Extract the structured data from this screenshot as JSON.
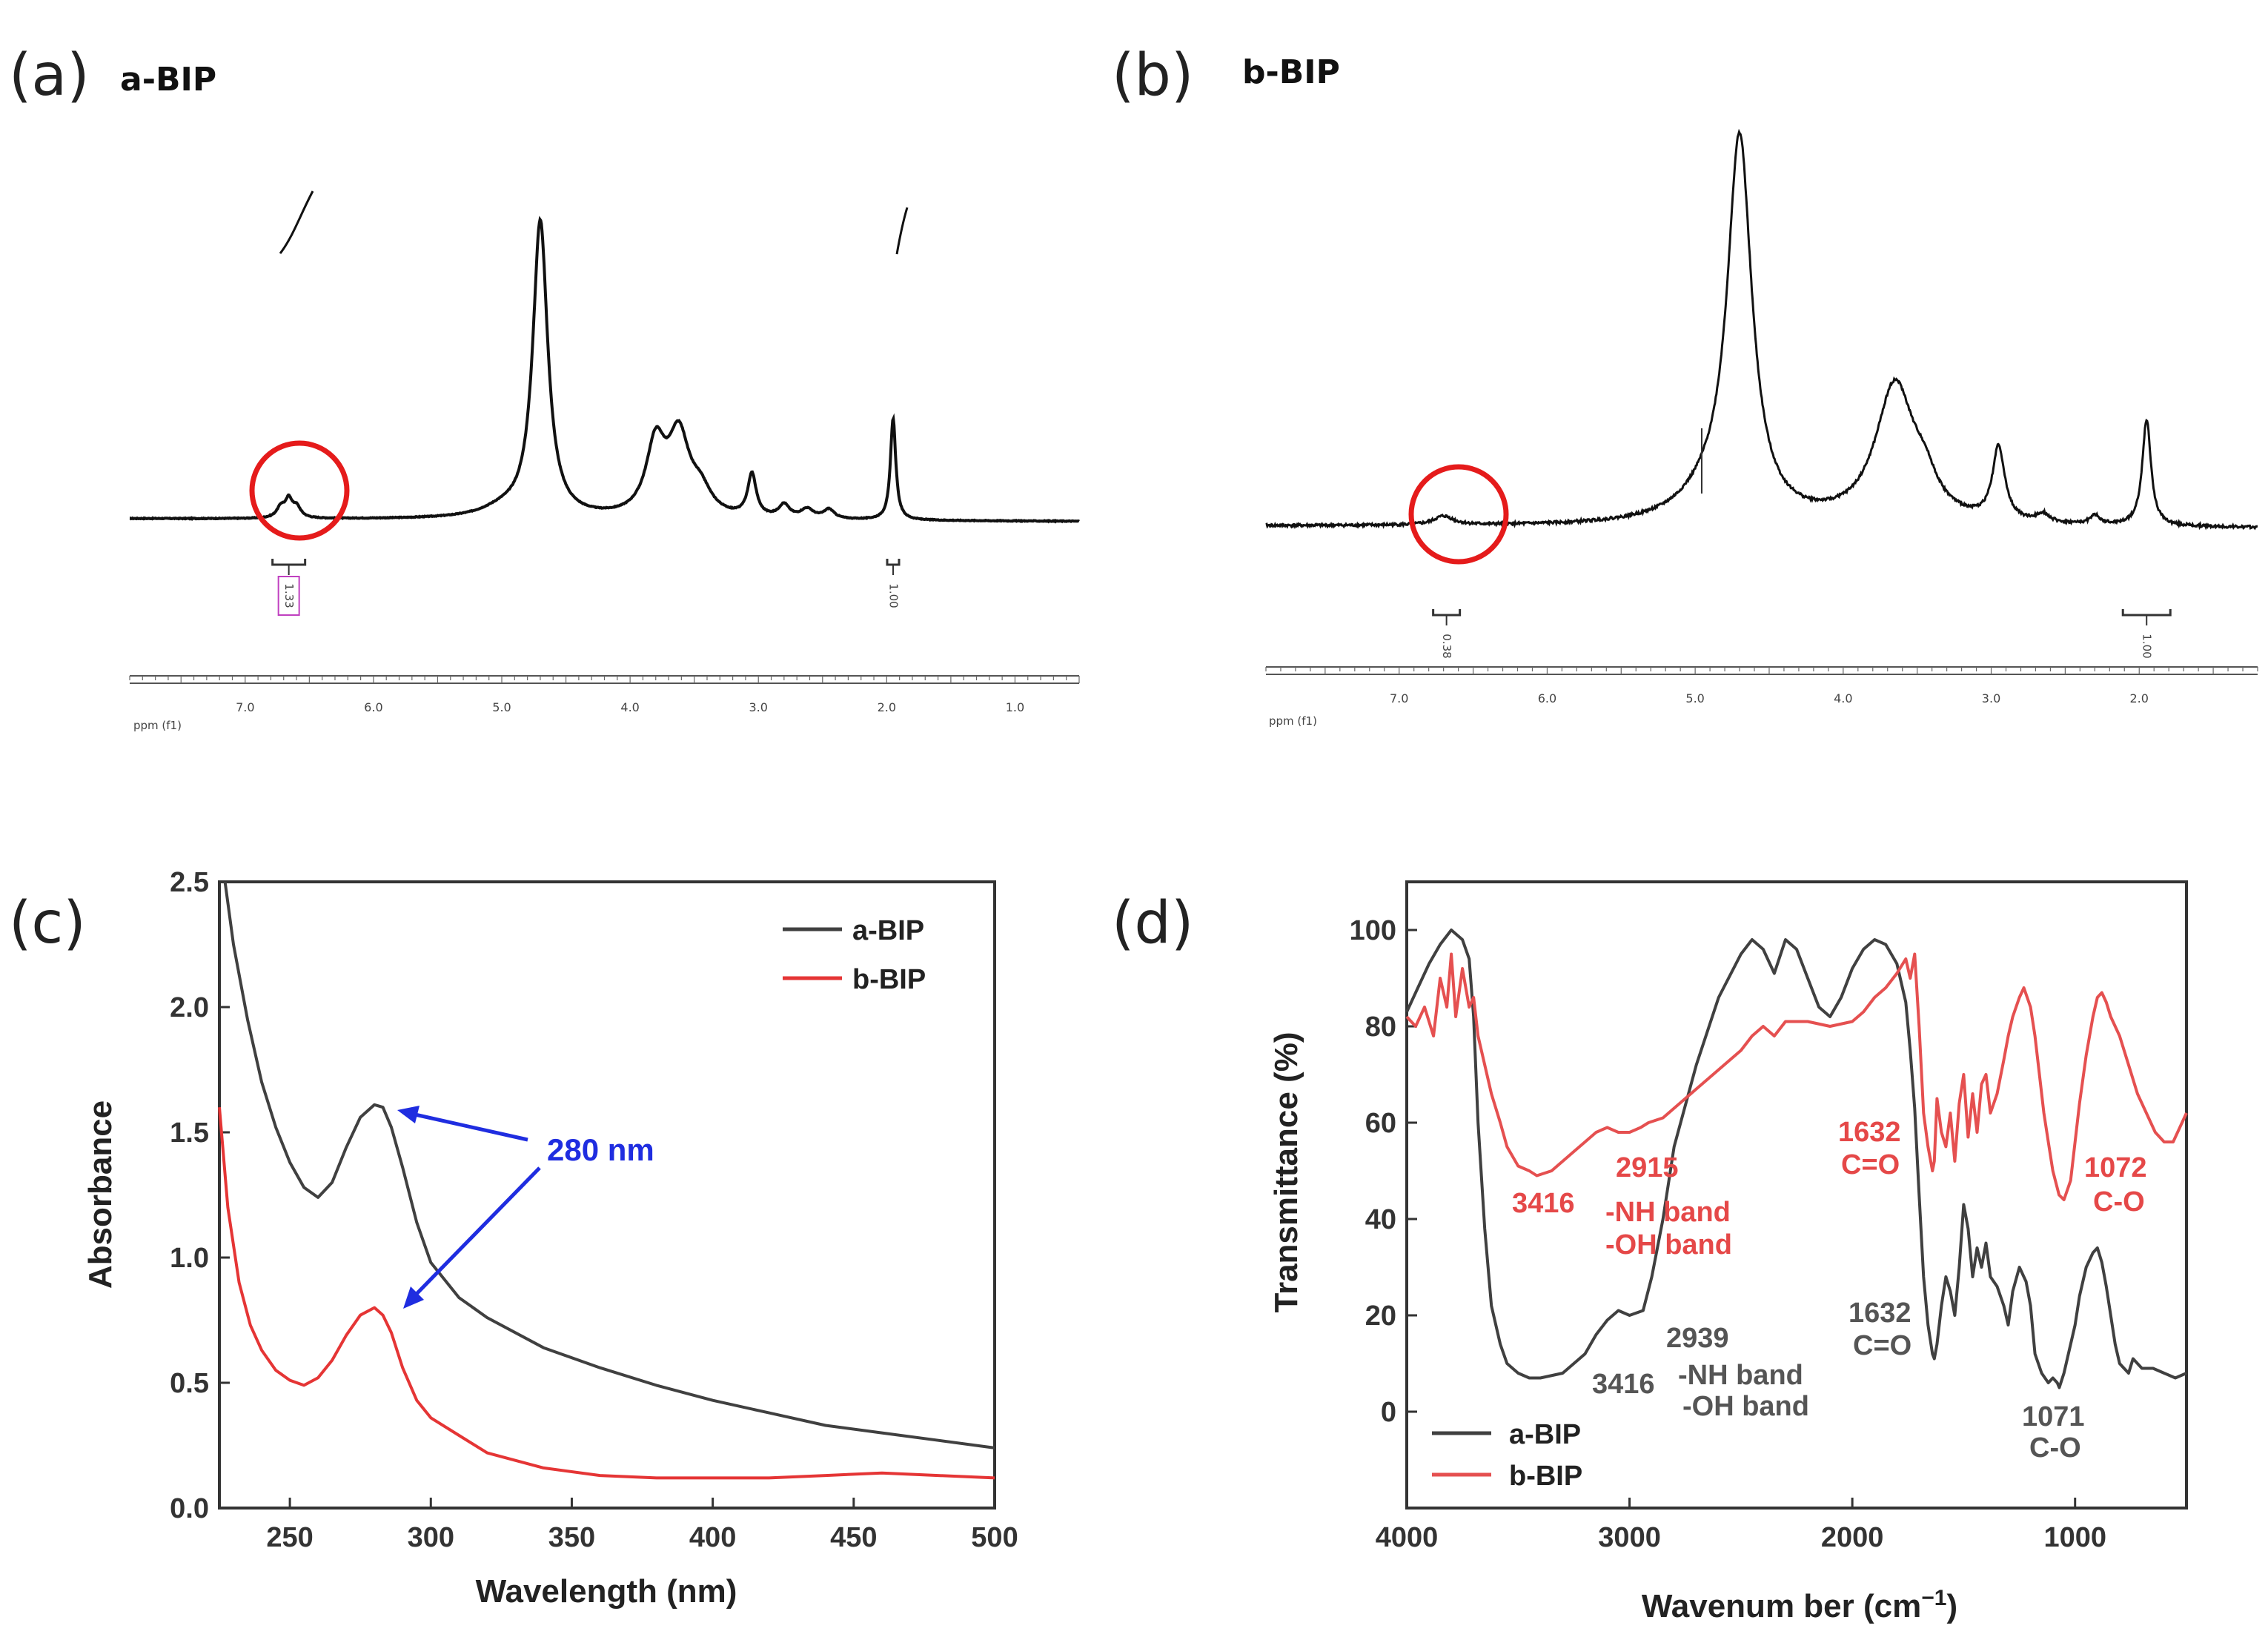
{
  "chart_data": [
    {
      "id": "a",
      "panel_label": "(a)",
      "type": "line",
      "title": "a-BIP",
      "xlabel": "ppm (f1)",
      "xlim": [
        7.9,
        0.5
      ],
      "ticks": [
        "7.0",
        "6.0",
        "5.0",
        "4.0",
        "3.0",
        "2.0",
        "1.0"
      ],
      "tick_values": [
        7.0,
        6.0,
        5.0,
        4.0,
        3.0,
        2.0,
        1.0
      ],
      "integrals": [
        {
          "center": 6.66,
          "label": "1.33"
        },
        {
          "center": 1.95,
          "label": "1.00"
        }
      ],
      "baseline": {
        "left": 0.0,
        "right": -0.015
      },
      "peaks": [
        {
          "ppm": 6.72,
          "height": 0.06,
          "width": 0.04
        },
        {
          "ppm": 6.66,
          "height": 0.09,
          "width": 0.03
        },
        {
          "ppm": 6.6,
          "height": 0.06,
          "width": 0.04
        },
        {
          "ppm": 4.7,
          "height": 1.6,
          "width": 0.07
        },
        {
          "ppm": 5.0,
          "height": 0.04,
          "width": 0.2
        },
        {
          "ppm": 3.8,
          "height": 0.38,
          "width": 0.09
        },
        {
          "ppm": 3.62,
          "height": 0.42,
          "width": 0.1
        },
        {
          "ppm": 3.45,
          "height": 0.12,
          "width": 0.1
        },
        {
          "ppm": 3.05,
          "height": 0.23,
          "width": 0.04
        },
        {
          "ppm": 2.8,
          "height": 0.07,
          "width": 0.05
        },
        {
          "ppm": 2.62,
          "height": 0.05,
          "width": 0.06
        },
        {
          "ppm": 2.45,
          "height": 0.05,
          "width": 0.05
        },
        {
          "ppm": 1.95,
          "height": 0.55,
          "width": 0.025
        }
      ]
    },
    {
      "id": "b",
      "panel_label": "(b)",
      "type": "line",
      "title": "b-BIP",
      "xlabel": "ppm (f1)",
      "xlim": [
        7.9,
        1.2
      ],
      "ticks": [
        "7.0",
        "6.0",
        "5.0",
        "4.0",
        "3.0",
        "2.0"
      ],
      "tick_values": [
        7.0,
        6.0,
        5.0,
        4.0,
        3.0,
        2.0
      ],
      "integrals": [
        {
          "center": 6.68,
          "label": "0.38"
        },
        {
          "center": 1.95,
          "label": "1.00"
        }
      ],
      "baseline": {
        "left": 0.0,
        "right": -0.01
      },
      "peaks": [
        {
          "ppm": 6.7,
          "height": 0.04,
          "width": 0.08
        },
        {
          "ppm": 4.7,
          "height": 1.7,
          "width": 0.1
        },
        {
          "ppm": 4.9,
          "height": 0.1,
          "width": 0.25
        },
        {
          "ppm": 3.65,
          "height": 0.62,
          "width": 0.16
        },
        {
          "ppm": 3.45,
          "height": 0.12,
          "width": 0.1
        },
        {
          "ppm": 2.95,
          "height": 0.33,
          "width": 0.05
        },
        {
          "ppm": 2.65,
          "height": 0.04,
          "width": 0.05
        },
        {
          "ppm": 2.3,
          "height": 0.04,
          "width": 0.04
        },
        {
          "ppm": 1.95,
          "height": 0.48,
          "width": 0.035
        }
      ]
    },
    {
      "id": "c",
      "panel_label": "(c)",
      "type": "line",
      "title": "",
      "xlabel": "Wavelength (nm)",
      "ylabel": "Absorbance",
      "xlim": [
        225,
        500
      ],
      "ylim": [
        0.0,
        2.5
      ],
      "xticks": [
        250,
        300,
        350,
        400,
        450,
        500
      ],
      "yticks": [
        0.0,
        0.5,
        1.0,
        1.5,
        2.0,
        2.5
      ],
      "ytick_labels": [
        "0.0",
        "0.5",
        "1.0",
        "1.5",
        "2.0",
        "2.5"
      ],
      "legend_position": "top-right",
      "series": [
        {
          "name": "a-BIP",
          "color": "#404040",
          "x": [
            227,
            230,
            235,
            240,
            245,
            250,
            255,
            260,
            265,
            270,
            275,
            280,
            283,
            286,
            290,
            295,
            300,
            310,
            320,
            340,
            360,
            380,
            400,
            420,
            440,
            460,
            480,
            500
          ],
          "y": [
            2.5,
            2.25,
            1.95,
            1.7,
            1.52,
            1.38,
            1.28,
            1.24,
            1.3,
            1.44,
            1.56,
            1.61,
            1.6,
            1.52,
            1.36,
            1.14,
            0.98,
            0.84,
            0.76,
            0.64,
            0.56,
            0.49,
            0.43,
            0.38,
            0.33,
            0.3,
            0.27,
            0.24
          ]
        },
        {
          "name": "b-BIP",
          "color": "#e53535",
          "x": [
            225,
            228,
            232,
            236,
            240,
            245,
            250,
            255,
            260,
            265,
            270,
            275,
            280,
            283,
            286,
            290,
            295,
            300,
            310,
            320,
            340,
            360,
            380,
            400,
            420,
            440,
            460,
            480,
            500
          ],
          "y": [
            1.6,
            1.2,
            0.9,
            0.73,
            0.63,
            0.55,
            0.51,
            0.49,
            0.52,
            0.59,
            0.69,
            0.77,
            0.8,
            0.77,
            0.7,
            0.56,
            0.43,
            0.36,
            0.29,
            0.22,
            0.16,
            0.13,
            0.12,
            0.12,
            0.12,
            0.13,
            0.14,
            0.13,
            0.12
          ]
        }
      ],
      "annotation": {
        "text": "280 nm",
        "peak_wavelength": 280
      }
    },
    {
      "id": "d",
      "panel_label": "(d)",
      "type": "line",
      "title": "",
      "xlabel": "Wavenum ber (cm",
      "xlabel_sup": "−1",
      "xlabel_close": ")",
      "ylabel": "Transmittance (%)",
      "xlim": [
        4000,
        500
      ],
      "ylim": [
        -20,
        110
      ],
      "xticks": [
        4000,
        3000,
        2000,
        1000
      ],
      "yticks": [
        0,
        20,
        40,
        60,
        80,
        100
      ],
      "legend_position": "bottom-left",
      "series": [
        {
          "name": "a-BIP",
          "color": "#404040",
          "x": [
            4000,
            3950,
            3900,
            3850,
            3800,
            3750,
            3720,
            3700,
            3680,
            3650,
            3620,
            3580,
            3550,
            3500,
            3450,
            3400,
            3300,
            3200,
            3150,
            3100,
            3050,
            3000,
            2939,
            2900,
            2850,
            2800,
            2700,
            2600,
            2500,
            2450,
            2400,
            2350,
            2300,
            2250,
            2200,
            2150,
            2100,
            2050,
            2000,
            1950,
            1900,
            1850,
            1800,
            1760,
            1740,
            1720,
            1700,
            1680,
            1660,
            1640,
            1632,
            1620,
            1600,
            1580,
            1560,
            1540,
            1520,
            1500,
            1480,
            1460,
            1440,
            1420,
            1400,
            1380,
            1350,
            1320,
            1300,
            1280,
            1250,
            1220,
            1200,
            1180,
            1150,
            1120,
            1100,
            1080,
            1071,
            1050,
            1020,
            1000,
            980,
            950,
            920,
            900,
            880,
            860,
            840,
            820,
            800,
            780,
            760,
            740,
            720,
            700,
            650,
            600,
            550,
            500
          ],
          "y": [
            83,
            88,
            93,
            97,
            100,
            98,
            94,
            82,
            60,
            38,
            22,
            14,
            10,
            8,
            7,
            7,
            8,
            12,
            16,
            19,
            21,
            20,
            21,
            28,
            40,
            55,
            72,
            86,
            95,
            98,
            96,
            91,
            98,
            96,
            90,
            84,
            82,
            86,
            92,
            96,
            98,
            97,
            93,
            85,
            75,
            63,
            45,
            28,
            18,
            12,
            11,
            14,
            22,
            28,
            25,
            20,
            30,
            43,
            38,
            28,
            34,
            30,
            35,
            28,
            26,
            22,
            18,
            25,
            30,
            27,
            22,
            12,
            8,
            6,
            7,
            6,
            5,
            8,
            14,
            18,
            24,
            30,
            33,
            34,
            31,
            26,
            20,
            14,
            10,
            9,
            8,
            11,
            10,
            9,
            9,
            8,
            7,
            8
          ]
        },
        {
          "name": "b-BIP",
          "color": "#e55050",
          "x": [
            4000,
            3960,
            3920,
            3880,
            3850,
            3820,
            3800,
            3780,
            3750,
            3720,
            3700,
            3680,
            3650,
            3620,
            3580,
            3550,
            3500,
            3450,
            3416,
            3350,
            3300,
            3250,
            3200,
            3150,
            3100,
            3050,
            3000,
            2950,
            2915,
            2850,
            2800,
            2700,
            2600,
            2500,
            2450,
            2400,
            2350,
            2300,
            2200,
            2100,
            2000,
            1950,
            1900,
            1850,
            1800,
            1760,
            1740,
            1720,
            1700,
            1680,
            1660,
            1640,
            1632,
            1620,
            1600,
            1580,
            1560,
            1540,
            1520,
            1500,
            1480,
            1460,
            1440,
            1420,
            1400,
            1380,
            1350,
            1320,
            1300,
            1280,
            1250,
            1230,
            1200,
            1180,
            1160,
            1140,
            1120,
            1100,
            1072,
            1050,
            1020,
            1000,
            980,
            950,
            920,
            900,
            880,
            860,
            840,
            800,
            760,
            720,
            680,
            640,
            600,
            560,
            520,
            500
          ],
          "y": [
            82,
            80,
            84,
            78,
            90,
            84,
            95,
            82,
            92,
            84,
            86,
            78,
            72,
            66,
            60,
            55,
            51,
            50,
            49,
            50,
            52,
            54,
            56,
            58,
            59,
            58,
            58,
            59,
            60,
            61,
            63,
            67,
            71,
            75,
            78,
            80,
            78,
            81,
            81,
            80,
            81,
            83,
            86,
            88,
            91,
            94,
            90,
            95,
            80,
            62,
            55,
            50,
            52,
            65,
            58,
            55,
            62,
            52,
            64,
            70,
            57,
            66,
            58,
            68,
            70,
            62,
            66,
            73,
            78,
            82,
            86,
            88,
            84,
            78,
            70,
            62,
            56,
            50,
            45,
            44,
            48,
            56,
            64,
            74,
            82,
            86,
            87,
            85,
            82,
            78,
            72,
            66,
            62,
            58,
            56,
            56,
            60,
            62
          ]
        }
      ],
      "annotations_red": [
        {
          "text": "3416"
        },
        {
          "text": "2915"
        },
        {
          "text": "-NH band"
        },
        {
          "text": "-OH band"
        },
        {
          "text": "1632"
        },
        {
          "text": "C=O"
        },
        {
          "text": "1072"
        },
        {
          "text": "C-O"
        }
      ],
      "annotations_gray": [
        {
          "text": "2939"
        },
        {
          "text": "3416"
        },
        {
          "text": "-NH band"
        },
        {
          "text": "-OH band"
        },
        {
          "text": "1632"
        },
        {
          "text": "C=O"
        },
        {
          "text": "1071"
        },
        {
          "text": "C-O"
        }
      ]
    }
  ]
}
